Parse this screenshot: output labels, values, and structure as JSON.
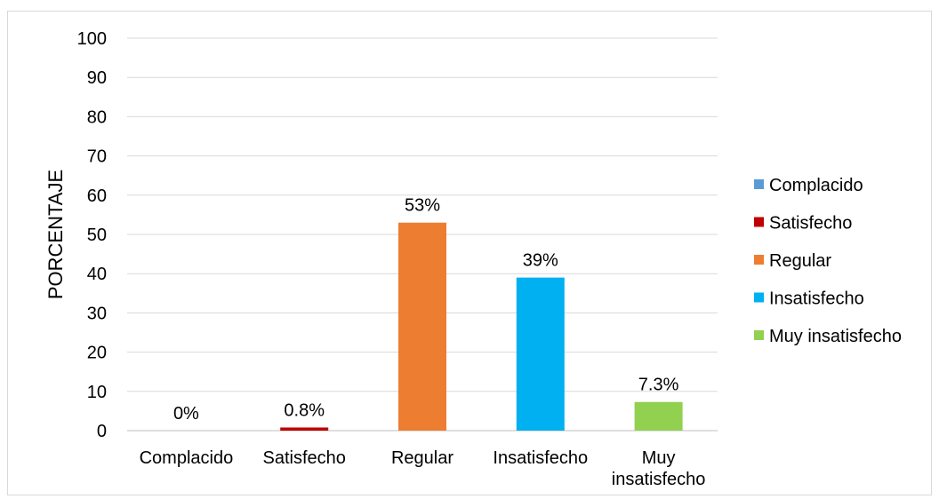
{
  "chart_data": {
    "type": "bar",
    "title": "",
    "xlabel": "",
    "ylabel": "PORCENTAJE",
    "ylim": [
      0,
      100
    ],
    "yticks": [
      0,
      10,
      20,
      30,
      40,
      50,
      60,
      70,
      80,
      90,
      100
    ],
    "grid": true,
    "legend_position": "right",
    "categories": [
      "Complacido",
      "Satisfecho",
      "Regular",
      "Insatisfecho",
      "Muy insatisfecho"
    ],
    "category_label_lines": [
      [
        "Complacido"
      ],
      [
        "Satisfecho"
      ],
      [
        "Regular"
      ],
      [
        "Insatisfecho"
      ],
      [
        "Muy",
        "insatisfecho"
      ]
    ],
    "values": [
      0,
      0.8,
      53,
      39,
      7.3
    ],
    "data_labels": [
      "0%",
      "0.8%",
      "53%",
      "39%",
      "7.3%"
    ],
    "colors": [
      "#5b9bd5",
      "#c00000",
      "#ed7d31",
      "#00b0f0",
      "#92d050"
    ],
    "legend": [
      "Complacido",
      "Satisfecho",
      "Regular",
      "Insatisfecho",
      "Muy insatisfecho"
    ]
  }
}
